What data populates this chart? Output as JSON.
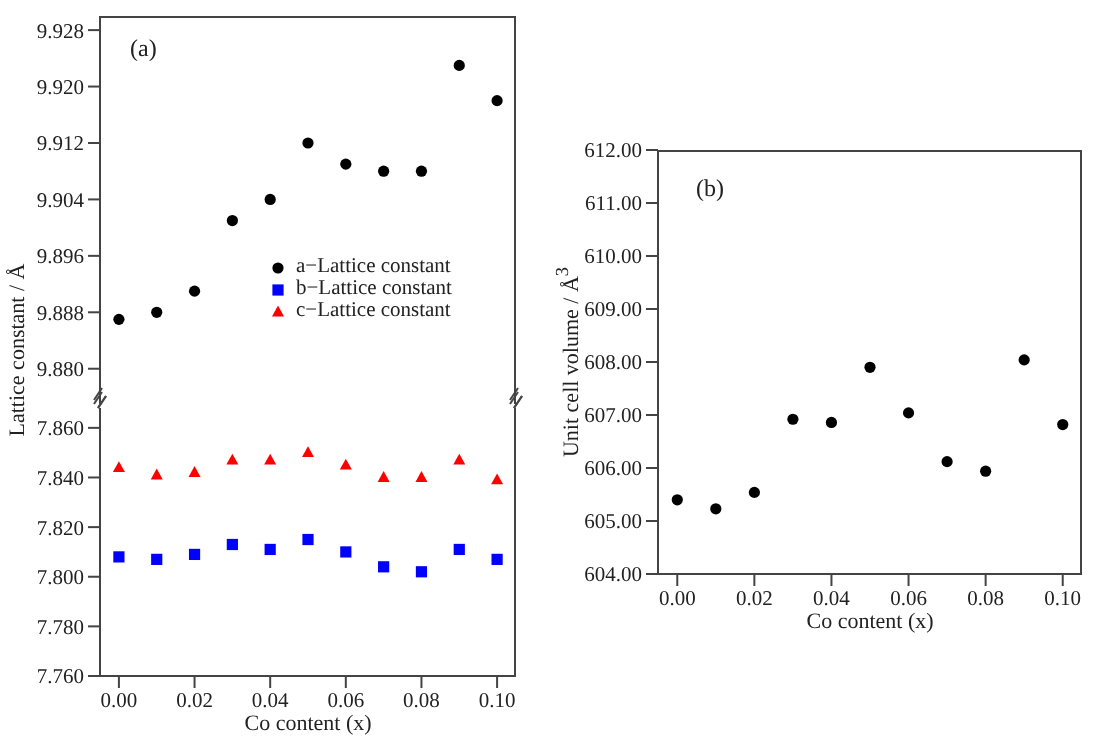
{
  "chart_data": [
    {
      "type": "scatter",
      "title": "(a)",
      "ylabel": "Lattice constant / Å",
      "x": [
        0,
        0.01,
        0.02,
        0.03,
        0.04,
        0.05,
        0.06,
        0.07,
        0.08,
        0.09,
        0.1
      ],
      "series": [
        {
          "name": "a−Lattice constant",
          "color": "#000000",
          "marker": "circle",
          "values": [
            9.887,
            9.888,
            9.891,
            9.901,
            9.904,
            9.912,
            9.909,
            9.908,
            9.908,
            9.923,
            9.918
          ]
        }
      ],
      "xlim": [
        -0.005,
        0.105
      ],
      "ylim": [
        9.875,
        9.93
      ],
      "yticks": [
        {
          "value": 9.88,
          "label": "9.880"
        },
        {
          "value": 9.888,
          "label": "9.888"
        },
        {
          "value": 9.896,
          "label": "9.896"
        },
        {
          "value": 9.904,
          "label": "9.904"
        },
        {
          "value": 9.912,
          "label": "9.912"
        },
        {
          "value": 9.92,
          "label": "9.920"
        },
        {
          "value": 9.928,
          "label": "9.928"
        }
      ],
      "tick_labels": "y",
      "legend": "bottom right",
      "grid": false
    },
    {
      "type": "scatter",
      "xlabel": "Co content (x)",
      "x": [
        0,
        0.01,
        0.02,
        0.03,
        0.04,
        0.05,
        0.06,
        0.07,
        0.08,
        0.09,
        0.1
      ],
      "series": [
        {
          "name": "b−Lattice constant",
          "color": "#0000ff",
          "marker": "square",
          "values": [
            7.808,
            7.807,
            7.809,
            7.813,
            7.811,
            7.815,
            7.81,
            7.804,
            7.802,
            7.811,
            7.807
          ]
        },
        {
          "name": "c−Lattice constant",
          "color": "#ff0000",
          "marker": "triangle",
          "values": [
            7.844,
            7.841,
            7.842,
            7.847,
            7.847,
            7.85,
            7.845,
            7.84,
            7.84,
            7.847,
            7.839
          ]
        }
      ],
      "xlim": [
        -0.005,
        0.105
      ],
      "xticks": [
        {
          "value": 0,
          "label": "0.00"
        },
        {
          "value": 0.02,
          "label": "0.02"
        },
        {
          "value": 0.04,
          "label": "0.04"
        },
        {
          "value": 0.06,
          "label": "0.06"
        },
        {
          "value": 0.08,
          "label": "0.08"
        },
        {
          "value": 0.1,
          "label": "0.10"
        }
      ],
      "ylim": [
        7.76,
        7.868
      ],
      "yticks": [
        {
          "value": 7.76,
          "label": "7.760"
        },
        {
          "value": 7.78,
          "label": "7.780"
        },
        {
          "value": 7.8,
          "label": "7.800"
        },
        {
          "value": 7.82,
          "label": "7.820"
        },
        {
          "value": 7.84,
          "label": "7.840"
        },
        {
          "value": 7.86,
          "label": "7.860"
        }
      ],
      "legend": "top right",
      "grid": false
    },
    {
      "type": "scatter",
      "title": "(b)",
      "xlabel": "Co content (x)",
      "ylabel": "Unit cell volume / Å$^{3}$",
      "x": [
        0,
        0.01,
        0.02,
        0.03,
        0.04,
        0.05,
        0.06,
        0.07,
        0.08,
        0.09,
        0.1
      ],
      "series": [
        {
          "color": "#000000",
          "marker": "circle",
          "values": [
            605.4,
            605.23,
            605.54,
            606.92,
            606.86,
            607.9,
            607.04,
            606.12,
            605.94,
            608.04,
            606.82
          ]
        }
      ],
      "xlim": [
        -0.005,
        0.105
      ],
      "xticks": [
        {
          "value": 0,
          "label": "0.00"
        },
        {
          "value": 0.02,
          "label": "0.02"
        },
        {
          "value": 0.04,
          "label": "0.04"
        },
        {
          "value": 0.06,
          "label": "0.06"
        },
        {
          "value": 0.08,
          "label": "0.08"
        },
        {
          "value": 0.1,
          "label": "0.10"
        }
      ],
      "ylim": [
        604,
        612
      ],
      "yticks": [
        {
          "value": 604,
          "label": "604.00"
        },
        {
          "value": 605,
          "label": "605.00"
        },
        {
          "value": 606,
          "label": "606.00"
        },
        {
          "value": 607,
          "label": "607.00"
        },
        {
          "value": 608,
          "label": "608.00"
        },
        {
          "value": 609,
          "label": "609.00"
        },
        {
          "value": 610,
          "label": "610.00"
        },
        {
          "value": 611,
          "label": "611.00"
        },
        {
          "value": 612,
          "label": "612.00"
        }
      ],
      "grid": false
    }
  ]
}
